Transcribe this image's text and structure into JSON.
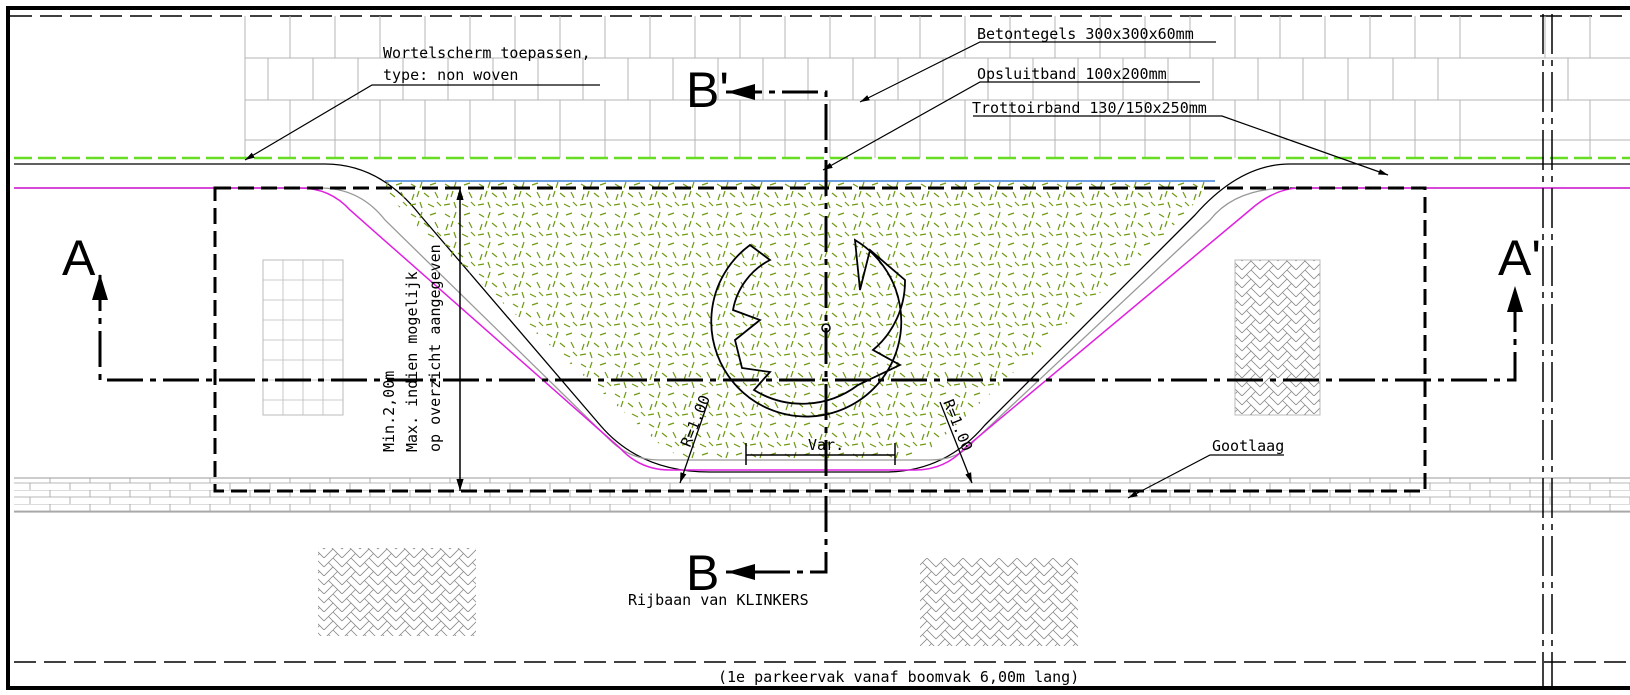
{
  "labels": {
    "root_screen": "Wortelscherm toepassen,",
    "root_screen_type": "type: non woven",
    "tiles": "Betontegels 300x300x60mm",
    "opsluitband": "Opsluitband 100x200mm",
    "trottoirband": "Trottoirband 130/150x250mm",
    "gootlaag": "Gootlaag",
    "road": "Rijbaan van KLINKERS",
    "parking_note": "(1e parkeervak vanaf boomvak 6,00m lang)",
    "var": "Var.",
    "radius_left": "R=1.00",
    "radius_right": "R=1.00",
    "dim_min": "Min.2,00m",
    "dim_max": "Max. indien mogelijk",
    "dim_overview": "op overzicht aangegeven"
  },
  "sections": {
    "A": "A",
    "A_prime": "A'",
    "B": "B",
    "B_prime": "B'"
  },
  "colors": {
    "green_line": "#66dd22",
    "magenta_line": "#e020e0",
    "blue_line": "#3a7fd5",
    "grass": "#6f9a14",
    "grid": "#b4b4b4"
  }
}
